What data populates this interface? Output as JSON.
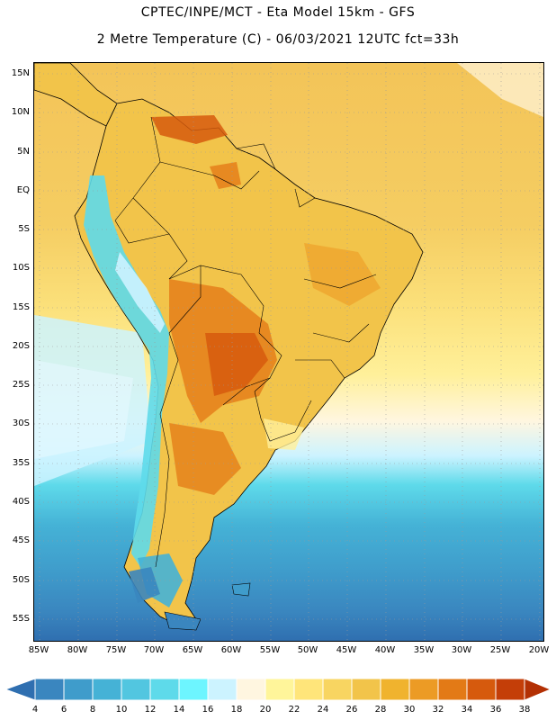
{
  "header": {
    "line1": "CPTEC/INPE/MCT -  Eta Model 15km - GFS",
    "line2": "2 Metre Temperature (C) - 06/03/2021 12UTC fct=33h"
  },
  "map": {
    "region": "South America",
    "lat_labels": [
      "15N",
      "10N",
      "5N",
      "EQ",
      "5S",
      "10S",
      "15S",
      "20S",
      "25S",
      "30S",
      "35S",
      "40S",
      "45S",
      "50S",
      "55S"
    ],
    "lon_labels": [
      "85W",
      "80W",
      "75W",
      "70W",
      "65W",
      "60W",
      "55W",
      "50W",
      "45W",
      "40W",
      "35W",
      "30W",
      "25W",
      "20W"
    ]
  },
  "colorbar": {
    "labels": [
      "4",
      "6",
      "8",
      "10",
      "12",
      "14",
      "16",
      "18",
      "20",
      "22",
      "24",
      "26",
      "28",
      "30",
      "32",
      "34",
      "36",
      "38"
    ],
    "colors": [
      "#2f6fb0",
      "#3a86bf",
      "#3f9ccb",
      "#45b2d6",
      "#52c6e0",
      "#5edaea",
      "#6df5ff",
      "#ccf3ff",
      "#fff6e0",
      "#fff59a",
      "#ffe57a",
      "#f8d561",
      "#f2c44a",
      "#f0b32e",
      "#ec9b25",
      "#e37a16",
      "#d65a0d",
      "#c43e08",
      "#b33004"
    ]
  }
}
